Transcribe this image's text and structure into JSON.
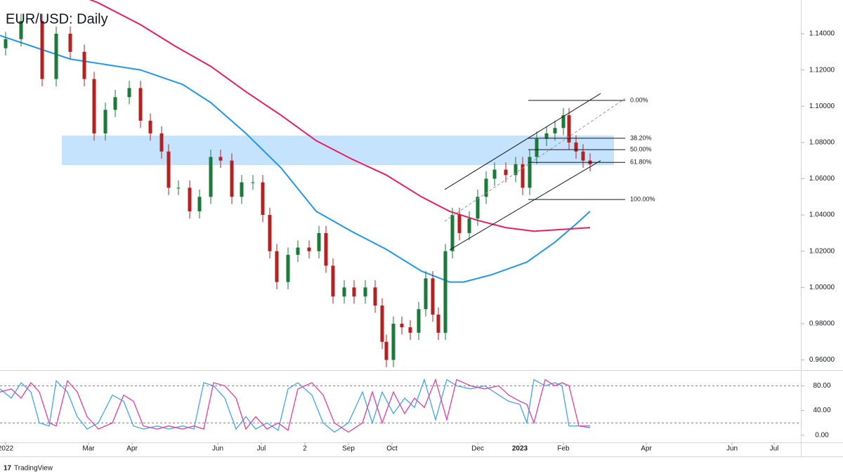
{
  "chart_data": [
    {
      "type": "candlestick",
      "title": "EUR/USD: Daily",
      "up_color": "#1b7a3a",
      "down_color": "#b22222",
      "x": [
        0,
        11,
        26,
        36,
        46,
        56,
        63,
        71,
        78,
        88,
        96,
        103,
        111,
        116,
        123,
        131,
        138,
        146,
        153,
        161,
        168,
        176,
        183,
        188,
        193,
        201,
        208,
        216,
        223,
        228,
        233,
        241,
        248,
        256,
        263,
        268,
        271,
        276,
        282,
        288,
        294,
        299,
        304,
        308,
        313,
        318,
        323,
        330,
        336,
        342,
        348,
        356,
        363,
        368,
        373,
        378,
        385,
        391,
        397,
        401,
        406,
        411,
        416
      ],
      "open": [
        1.132,
        1.137,
        1.147,
        1.115,
        1.14,
        1.13,
        1.115,
        1.085,
        1.098,
        1.105,
        1.11,
        1.092,
        1.085,
        1.075,
        1.055,
        1.055,
        1.042,
        1.05,
        1.072,
        1.07,
        1.05,
        1.058,
        1.058,
        1.04,
        1.02,
        1.003,
        1.018,
        1.022,
        1.02,
        1.03,
        1.012,
        0.995,
        1.0,
        0.995,
        1.0,
        0.99,
        0.97,
        0.96,
        0.98,
        0.978,
        0.975,
        0.988,
        1.005,
        0.985,
        0.975,
        1.02,
        1.04,
        1.03,
        1.038,
        1.05,
        1.06,
        1.065,
        1.062,
        1.068,
        1.055,
        1.072,
        1.082,
        1.085,
        1.088,
        1.095,
        1.08,
        1.075,
        1.07
      ],
      "high": [
        1.141,
        1.151,
        1.151,
        1.144,
        1.144,
        1.134,
        1.119,
        1.102,
        1.109,
        1.114,
        1.114,
        1.096,
        1.089,
        1.079,
        1.059,
        1.059,
        1.054,
        1.076,
        1.076,
        1.074,
        1.062,
        1.062,
        1.062,
        1.044,
        1.024,
        1.022,
        1.026,
        1.026,
        1.034,
        1.034,
        1.016,
        1.004,
        1.004,
        1.004,
        1.004,
        0.994,
        0.974,
        0.984,
        0.984,
        0.982,
        0.992,
        1.009,
        1.009,
        0.989,
        1.024,
        1.044,
        1.044,
        1.042,
        1.054,
        1.064,
        1.069,
        1.069,
        1.072,
        1.072,
        1.076,
        1.086,
        1.089,
        1.092,
        1.099,
        1.099,
        1.084,
        1.079,
        1.074
      ],
      "low": [
        1.128,
        1.133,
        1.111,
        1.111,
        1.126,
        1.111,
        1.081,
        1.081,
        1.094,
        1.101,
        1.088,
        1.081,
        1.071,
        1.051,
        1.051,
        1.038,
        1.038,
        1.046,
        1.066,
        1.046,
        1.046,
        1.054,
        1.036,
        1.016,
        0.999,
        0.999,
        1.014,
        1.016,
        1.016,
        1.008,
        0.991,
        0.991,
        0.991,
        0.991,
        0.986,
        0.966,
        0.956,
        0.956,
        0.974,
        0.971,
        0.971,
        0.984,
        0.981,
        0.971,
        0.971,
        1.016,
        1.026,
        1.026,
        1.034,
        1.046,
        1.056,
        1.058,
        1.058,
        1.051,
        1.051,
        1.068,
        1.078,
        1.081,
        1.084,
        1.076,
        1.071,
        1.066,
        1.064
      ],
      "close": [
        1.137,
        1.147,
        1.115,
        1.14,
        1.13,
        1.115,
        1.085,
        1.098,
        1.105,
        1.11,
        1.092,
        1.085,
        1.075,
        1.055,
        1.055,
        1.042,
        1.05,
        1.072,
        1.07,
        1.05,
        1.058,
        1.058,
        1.04,
        1.02,
        1.003,
        1.018,
        1.022,
        1.02,
        1.03,
        1.012,
        0.995,
        1.0,
        0.995,
        1.0,
        0.99,
        0.97,
        0.96,
        0.98,
        0.978,
        0.975,
        0.988,
        1.005,
        0.985,
        0.975,
        1.02,
        1.04,
        1.03,
        1.038,
        1.05,
        1.06,
        1.065,
        1.062,
        1.068,
        1.055,
        1.072,
        1.082,
        1.085,
        1.088,
        1.095,
        1.08,
        1.075,
        1.07,
        1.068
      ],
      "moving_averages": [
        {
          "color": "#2196f3",
          "x": [
            -4,
            46,
            96,
            126,
            146,
            171,
            196,
            221,
            246,
            271,
            296,
            316,
            326,
            346,
            371,
            391,
            406,
            416
          ],
          "values": [
            1.139,
            1.126,
            1.12,
            1.112,
            1.102,
            1.085,
            1.066,
            1.042,
            1.031,
            1.021,
            1.009,
            1.003,
            1.003,
            1.007,
            1.014,
            1.025,
            1.035,
            1.042
          ]
        },
        {
          "color": "#e91e63",
          "x": [
            56,
            66,
            96,
            121,
            146,
            171,
            196,
            221,
            246,
            271,
            296,
            316,
            336,
            356,
            376,
            396,
            416
          ],
          "values": [
            1.16,
            1.157,
            1.145,
            1.133,
            1.122,
            1.108,
            1.095,
            1.081,
            1.071,
            1.062,
            1.05,
            1.042,
            1.037,
            1.033,
            1.031,
            1.032,
            1.033
          ]
        }
      ],
      "zone": {
        "color": "#bbdefb",
        "x": [
          40,
          433
        ],
        "y": [
          1.0675,
          1.0838
        ]
      },
      "fib_x": [
        372,
        441
      ],
      "fib_levels": [
        {
          "value": 1.1032,
          "label": "0.00%"
        },
        {
          "value": 1.0823,
          "label": "38.20%"
        },
        {
          "value": 1.076,
          "label": "50.00%"
        },
        {
          "value": 1.069,
          "label": "61.80%"
        },
        {
          "value": 1.0485,
          "label": "100.00%"
        }
      ],
      "trend_lines": [
        {
          "dashed": false,
          "x": [
            312.5,
            423.5
          ],
          "y": [
            1.054,
            1.107
          ]
        },
        {
          "dashed": false,
          "x": [
            316,
            423.5
          ],
          "y": [
            1.0207,
            1.07
          ]
        },
        {
          "dashed": true,
          "x": [
            312.5,
            441
          ],
          "y": [
            1.0365,
            1.1043
          ]
        }
      ],
      "xlim": [
        -4,
        566
      ],
      "ylim": [
        0.9544,
        1.1586
      ],
      "yticks": [
        {
          "value": 0.96,
          "label": "0.96000"
        },
        {
          "value": 0.98,
          "label": "0.98000"
        },
        {
          "value": 1.0,
          "label": "1.00000"
        },
        {
          "value": 1.02,
          "label": "1.02000"
        },
        {
          "value": 1.04,
          "label": "1.04000"
        },
        {
          "value": 1.06,
          "label": "1.06000"
        },
        {
          "value": 1.08,
          "label": "1.08000"
        },
        {
          "value": 1.1,
          "label": "1.10000"
        },
        {
          "value": 1.12,
          "label": "1.12000"
        },
        {
          "value": 1.14,
          "label": "1.14000"
        }
      ]
    },
    {
      "type": "line",
      "x": [
        -4,
        4,
        11,
        18,
        24,
        31,
        36,
        44,
        51,
        58,
        66,
        76,
        84,
        91,
        98,
        108,
        116,
        126,
        134,
        141,
        148,
        156,
        164,
        171,
        178,
        186,
        194,
        201,
        208,
        218,
        226,
        234,
        244,
        254,
        261,
        268,
        276,
        284,
        291,
        298,
        306,
        314,
        321,
        331,
        341,
        351,
        358,
        366,
        371,
        376,
        384,
        391,
        396,
        401,
        408,
        416
      ],
      "series": [
        {
          "color": "#42a5f5",
          "values": [
            75,
            60,
            85,
            70,
            20,
            15,
            88,
            70,
            30,
            10,
            20,
            65,
            55,
            15,
            10,
            15,
            10,
            15,
            10,
            85,
            80,
            60,
            10,
            30,
            10,
            20,
            8,
            75,
            85,
            65,
            20,
            5,
            20,
            70,
            20,
            70,
            35,
            60,
            45,
            90,
            25,
            90,
            80,
            75,
            80,
            65,
            55,
            50,
            20,
            90,
            80,
            85,
            80,
            15,
            15,
            12
          ]
        },
        {
          "color": "#e040a0",
          "values": [
            70,
            75,
            60,
            85,
            70,
            20,
            15,
            88,
            70,
            30,
            10,
            20,
            65,
            55,
            15,
            10,
            15,
            10,
            15,
            10,
            85,
            80,
            60,
            10,
            30,
            10,
            20,
            8,
            75,
            85,
            65,
            20,
            5,
            20,
            70,
            20,
            70,
            35,
            60,
            45,
            90,
            25,
            90,
            80,
            75,
            80,
            65,
            55,
            50,
            20,
            90,
            80,
            85,
            80,
            15,
            15
          ]
        }
      ],
      "levels": [
        20,
        80
      ],
      "xlim": [
        -4,
        566
      ],
      "ylim": [
        -11.6,
        104.3
      ],
      "yticks": [
        {
          "value": 0,
          "label": "0.00"
        },
        {
          "value": 40,
          "label": "40.00"
        },
        {
          "value": 80,
          "label": "80.00"
        }
      ],
      "xticks": [
        {
          "value": 0,
          "label": "2022"
        },
        {
          "value": 59,
          "label": "Mar"
        },
        {
          "value": 90,
          "label": "Apr"
        },
        {
          "value": 151,
          "label": "Jun"
        },
        {
          "value": 182,
          "label": "Jul"
        },
        {
          "value": 213,
          "label": "2"
        },
        {
          "value": 244,
          "label": "Sep"
        },
        {
          "value": 275,
          "label": "Oct"
        },
        {
          "value": 336,
          "label": "Dec"
        },
        {
          "value": 366,
          "label": "2023"
        },
        {
          "value": 397,
          "label": "Feb"
        },
        {
          "value": 456,
          "label": "Apr"
        },
        {
          "value": 517,
          "label": "Jun"
        },
        {
          "value": 547,
          "label": "Jul"
        }
      ]
    }
  ],
  "footer": {
    "logo_text": "TradingView"
  }
}
